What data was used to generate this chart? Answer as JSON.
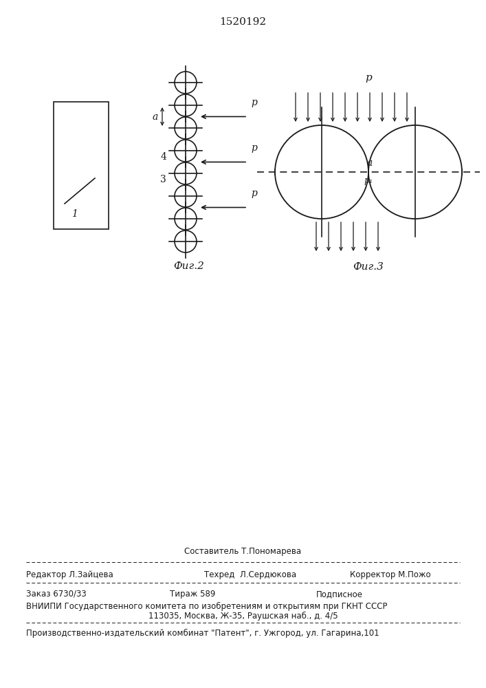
{
  "title": "1520192",
  "fig2_label": "Фиг.2",
  "fig3_label": "Фиг.3",
  "label_1": "1",
  "label_3": "3",
  "label_4": "4",
  "label_a_fig2": "a",
  "label_a_fig3": "a",
  "label_P": "p",
  "label_P1_sub": "p₁",
  "footer_sestavitel": "Составитель Т.Пономарева",
  "footer_redaktor": "Редактор Л.Зайцева",
  "footer_tehred": "Техред  Л.Сердюкова",
  "footer_korrektor": "Корректор М.Пожо",
  "footer_zakaz": "Заказ 6730/33",
  "footer_tirazh": "Тираж 589",
  "footer_podpisnoe": "Подписное",
  "footer_vniip1": "ВНИИПИ Государственного комитета по изобретениям и открытиям при ГКНТ СССР",
  "footer_vniip2": "113035, Москва, Ж-35, Раушская наб., д. 4/5",
  "footer_proizv": "Производственно-издательский комбинат \"Патент\", г. Ужгород, ул. Гагарина,101",
  "bg": "#ffffff",
  "lc": "#1a1a1a"
}
